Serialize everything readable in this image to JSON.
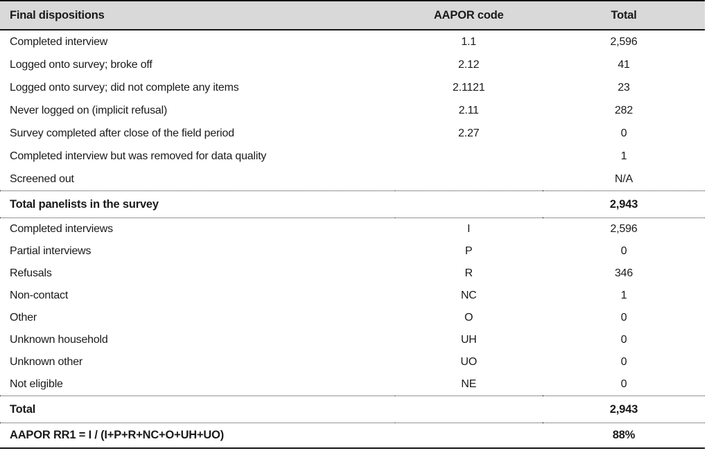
{
  "table": {
    "title_semantic": "AAPOR final dispositions and response rate table",
    "columns": {
      "label": "Final dispositions",
      "code": "AAPOR code",
      "total": "Total"
    },
    "section1": [
      {
        "label": "Completed interview",
        "code": "1.1",
        "total": "2,596"
      },
      {
        "label": "Logged onto survey; broke off",
        "code": "2.12",
        "total": "41"
      },
      {
        "label": "Logged onto survey; did not complete any items",
        "code": "2.1121",
        "total": "23"
      },
      {
        "label": "Never logged on (implicit refusal)",
        "code": "2.11",
        "total": "282"
      },
      {
        "label": "Survey completed after close of the field period",
        "code": "2.27",
        "total": "0"
      },
      {
        "label": "Completed interview but was removed for data quality",
        "code": "",
        "total": "1"
      },
      {
        "label": "Screened out",
        "code": "",
        "total": "N/A"
      }
    ],
    "subtotal1": {
      "label": "Total panelists in the survey",
      "code": "",
      "total": "2,943"
    },
    "section2": [
      {
        "label": "Completed interviews",
        "code": "I",
        "total": "2,596"
      },
      {
        "label": "Partial interviews",
        "code": "P",
        "total": "0"
      },
      {
        "label": "Refusals",
        "code": "R",
        "total": "346"
      },
      {
        "label": "Non-contact",
        "code": "NC",
        "total": "1"
      },
      {
        "label": "Other",
        "code": "O",
        "total": "0"
      },
      {
        "label": "Unknown household",
        "code": "UH",
        "total": "0"
      },
      {
        "label": "Unknown other",
        "code": "UO",
        "total": "0"
      },
      {
        "label": "Not eligible",
        "code": "NE",
        "total": "0"
      }
    ],
    "subtotal2": {
      "label": "Total",
      "code": "",
      "total": "2,943"
    },
    "rate_row": {
      "label": "AAPOR RR1 = I / (I+P+R+NC+O+UH+UO)",
      "code": "",
      "total": "88%"
    }
  },
  "colors": {
    "header_bg": "#d9d9d9",
    "rule": "#141414",
    "text": "#1a1a1a"
  }
}
